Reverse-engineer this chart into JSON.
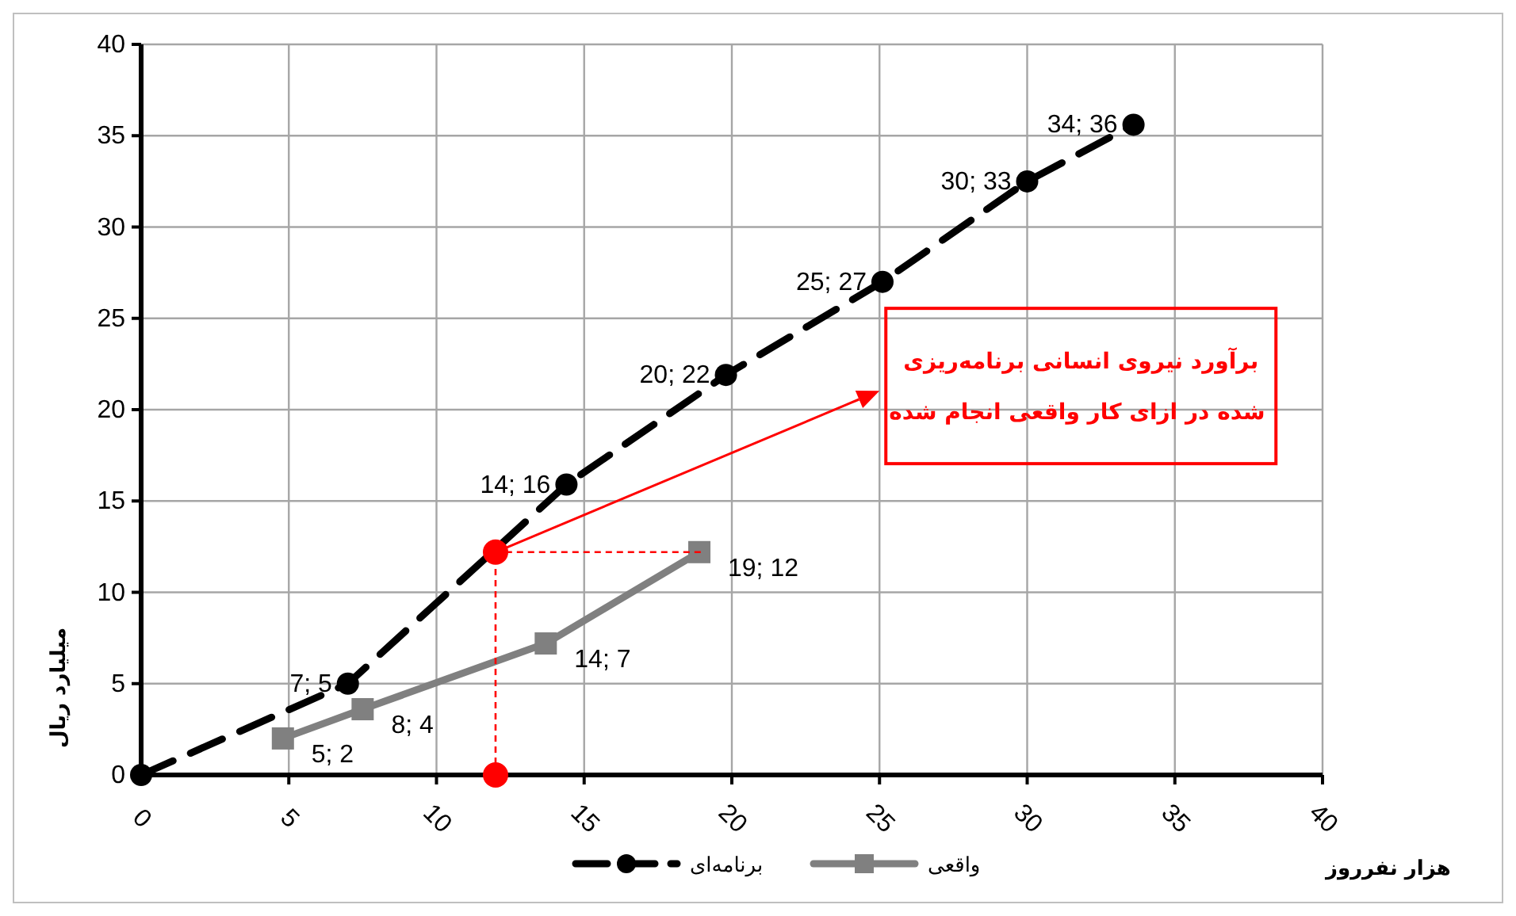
{
  "chart_data": {
    "type": "line",
    "xlabel": "هزار نفرروز",
    "ylabel": "میلیارد ریال",
    "xlim": [
      0,
      40
    ],
    "xticks": [
      0,
      5,
      10,
      15,
      20,
      25,
      30,
      35,
      40
    ],
    "ylim": [
      0,
      40
    ],
    "yticks": [
      0,
      5,
      10,
      15,
      20,
      25,
      30,
      35,
      40
    ],
    "grid": true,
    "legend": "bottom",
    "series": [
      {
        "name": "برنامه‌ای",
        "color": "#000000",
        "line_style": "dashed",
        "marker": "circle",
        "x": [
          0,
          7,
          14.4,
          19.8,
          25.1,
          30,
          33.6
        ],
        "values": [
          0,
          5,
          15.9,
          21.9,
          27,
          32.5,
          35.6
        ],
        "value_labels": [
          null,
          "7; 5",
          "14; 16",
          "20; 22",
          "25; 27",
          "30; 33",
          "34; 36"
        ]
      },
      {
        "name": "واقعی",
        "color": "#808080",
        "line_style": "solid",
        "marker": "square",
        "x": [
          4.8,
          7.5,
          13.7,
          18.9
        ],
        "values": [
          2,
          3.6,
          7.2,
          12.2
        ],
        "value_labels": [
          "5; 2",
          "8; 4",
          "14; 7",
          "19; 12"
        ]
      },
      {
        "type": "line",
        "color": "#ff0000",
        "line_style": "dashed",
        "marker": "none",
        "x": [
          12,
          12,
          19
        ],
        "values": [
          0,
          12.2,
          12.2
        ]
      },
      {
        "type": "scatter",
        "color": "#ff0000",
        "marker": "circle",
        "x": [
          12,
          12
        ],
        "values": [
          12.2,
          0
        ]
      }
    ],
    "annotations": [
      "برآورد نیروی انسانی برنامه‌ریزی شده در ازای کار واقعی انجام شده"
    ]
  }
}
